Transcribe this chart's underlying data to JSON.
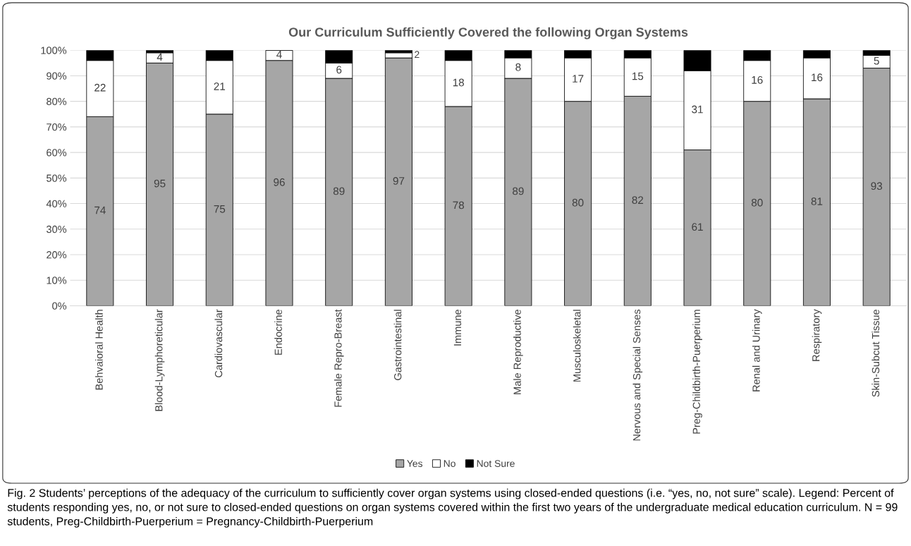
{
  "chart_data": {
    "type": "bar",
    "stacked": true,
    "title": "Our Curriculum Sufficiently Covered the following Organ Systems",
    "categories": [
      "Behvaioral Health",
      "Blood-Lymphoreticular",
      "Cardiovascular",
      "Endocrine",
      "Female Repro-Breast",
      "Gastrointestinal",
      "Immune",
      "Male Reproductive",
      "Musculoskeletal",
      "Nervous and Special Senses",
      "Preg-Childbirth-Puerperium",
      "Renal and Urinary",
      "Respiratory",
      "Skin-Subcut Tissue"
    ],
    "series": [
      {
        "name": "Yes",
        "color": "#a6a6a6",
        "values": [
          74,
          95,
          75,
          96,
          89,
          97,
          78,
          89,
          80,
          82,
          61,
          80,
          81,
          93
        ],
        "value_labels": [
          "74",
          "95",
          "75",
          "96",
          "89",
          "97",
          "78",
          "89",
          "80",
          "82",
          "61",
          "80",
          "81",
          "93"
        ]
      },
      {
        "name": "No",
        "color": "#ffffff",
        "values": [
          22,
          4,
          21,
          4,
          6,
          2,
          18,
          8,
          17,
          15,
          31,
          16,
          16,
          5
        ],
        "value_labels": [
          "22",
          "4",
          "21",
          "4",
          "6",
          "2",
          "18",
          "8",
          "17",
          "15",
          "31",
          "16",
          "16",
          "5"
        ]
      },
      {
        "name": "Not Sure",
        "color": "#000000",
        "values": [
          4,
          1,
          4,
          0,
          5,
          1,
          4,
          3,
          3,
          3,
          8,
          4,
          3,
          2
        ]
      }
    ],
    "ylim": [
      0,
      100
    ],
    "yticks": [
      {
        "value": 0,
        "label": "0%"
      },
      {
        "value": 10,
        "label": "10%"
      },
      {
        "value": 20,
        "label": "20%"
      },
      {
        "value": 30,
        "label": "30%"
      },
      {
        "value": 40,
        "label": "40%"
      },
      {
        "value": 50,
        "label": "50%"
      },
      {
        "value": 60,
        "label": "60%"
      },
      {
        "value": 70,
        "label": "70%"
      },
      {
        "value": 80,
        "label": "80%"
      },
      {
        "value": 90,
        "label": "90%"
      },
      {
        "value": 100,
        "label": "100%"
      }
    ],
    "grid": "y",
    "legend": "bottom",
    "annotations": [
      "Fig. 2 Students’ perceptions of the adequacy of the curriculum to sufficiently cover organ systems using closed-ended questions (i.e. “yes, no, not sure” scale). Legend: Percent of students responding yes, no, or not sure to closed-ended questions on organ systems covered within the first two years of the undergraduate medical education curriculum. N = 99 students, Preg-Childbirth-Puerperium = Pregnancy-Childbirth-Puerperium"
    ]
  }
}
